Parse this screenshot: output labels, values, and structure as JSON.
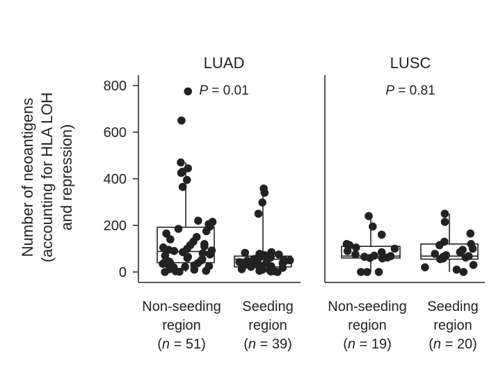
{
  "chart_data": {
    "type": "boxplot",
    "ylabel_lines": [
      "Number of neoantigens",
      "(accounting for HLA LOH",
      "and repression)"
    ],
    "yticks": [
      0,
      200,
      400,
      600,
      800
    ],
    "ylim": [
      -45,
      850
    ],
    "grid": false,
    "panels": [
      {
        "title": "LUAD",
        "p_label": "P",
        "p_value": " = 0.01",
        "groups": [
          {
            "label_line1": "Non-seeding",
            "label_line2": "region",
            "n_prefix": "(",
            "n_italic": "n",
            "n_suffix": " = 51)",
            "box": {
              "q1": 40,
              "median": 88,
              "q3": 192,
              "whisker_low": 0,
              "whisker_high": 470
            },
            "points": [
              775,
              650,
              470,
              445,
              430,
              425,
              395,
              365,
              220,
              215,
              205,
              195,
              185,
              175,
              165,
              150,
              140,
              130,
              120,
              115,
              110,
              105,
              100,
              95,
              92,
              90,
              85,
              80,
              75,
              70,
              65,
              60,
              55,
              50,
              45,
              42,
              40,
              38,
              35,
              30,
              28,
              25,
              22,
              20,
              15,
              12,
              10,
              5,
              3,
              1,
              0
            ]
          },
          {
            "label_line1": "Seeding",
            "label_line2": "region",
            "n_prefix": "(",
            "n_italic": "n",
            "n_suffix": " = 39)",
            "box": {
              "q1": 22,
              "median": 55,
              "q3": 68,
              "whisker_low": 0,
              "whisker_high": 360
            },
            "points": [
              358,
              340,
              298,
              250,
              85,
              82,
              78,
              75,
              72,
              70,
              68,
              65,
              62,
              60,
              58,
              55,
              52,
              50,
              48,
              45,
              42,
              40,
              38,
              35,
              32,
              30,
              28,
              25,
              22,
              20,
              18,
              15,
              12,
              10,
              8,
              5,
              3,
              2,
              0
            ]
          }
        ]
      },
      {
        "title": "LUSC",
        "p_label": "P",
        "p_value": " = 0.81",
        "groups": [
          {
            "label_line1": "Non-seeding",
            "label_line2": "region",
            "n_prefix": "(",
            "n_italic": "n",
            "n_suffix": " = 19)",
            "box": {
              "q1": 60,
              "median": 68,
              "q3": 110,
              "whisker_low": 0,
              "whisker_high": 240
            },
            "points": [
              240,
              195,
              160,
              120,
              115,
              105,
              100,
              90,
              85,
              75,
              70,
              68,
              65,
              62,
              60,
              58,
              0,
              0,
              0
            ]
          },
          {
            "label_line1": "Seeding",
            "label_line2": "region",
            "n_prefix": "(",
            "n_italic": "n",
            "n_suffix": " = 20)",
            "box": {
              "q1": 55,
              "median": 68,
              "q3": 120,
              "whisker_low": 0,
              "whisker_high": 250
            },
            "points": [
              250,
              215,
              165,
              130,
              120,
              115,
              100,
              95,
              85,
              78,
              72,
              68,
              65,
              62,
              58,
              55,
              30,
              20,
              10,
              0
            ]
          }
        ]
      }
    ]
  }
}
